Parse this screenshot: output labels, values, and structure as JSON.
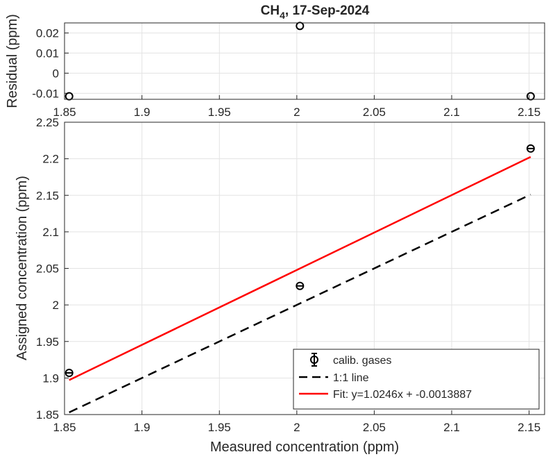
{
  "chart_data": [
    {
      "type": "scatter",
      "title_main": "CH",
      "title_sub": "4",
      "title_rest": ", 17-Sep-2024",
      "xlabel": "",
      "ylabel": "Residual (ppm)",
      "xlim": [
        1.85,
        2.16
      ],
      "ylim": [
        -0.013,
        0.025
      ],
      "xticks": [
        1.85,
        1.9,
        1.95,
        2,
        2.05,
        2.1,
        2.15
      ],
      "xtick_labels": [
        "1.85",
        "1.9",
        "1.95",
        "2",
        "2.05",
        "2.1",
        "2.15"
      ],
      "yticks": [
        0.02,
        0.01,
        0,
        -0.01
      ],
      "ytick_labels": [
        "0.02",
        "0.01",
        "0",
        "-0.01"
      ],
      "grid": true,
      "series": [
        {
          "x": [
            1.853,
            2.002,
            2.151
          ],
          "y": [
            -0.0115,
            0.0235,
            -0.0115
          ],
          "marker": "circle",
          "color": "#000000"
        }
      ]
    },
    {
      "type": "scatter",
      "xlabel": "Measured concentration (ppm)",
      "ylabel": "Assigned concentration (ppm)",
      "xlim": [
        1.85,
        2.16
      ],
      "ylim": [
        1.85,
        2.25
      ],
      "xticks": [
        1.85,
        1.9,
        1.95,
        2,
        2.05,
        2.1,
        2.15
      ],
      "xtick_labels": [
        "1.85",
        "1.9",
        "1.95",
        "2",
        "2.05",
        "2.1",
        "2.15"
      ],
      "yticks": [
        1.85,
        1.9,
        1.95,
        2,
        2.05,
        2.1,
        2.15,
        2.2,
        2.25
      ],
      "ytick_labels": [
        "1.85",
        "1.9",
        "1.95",
        "2",
        "2.05",
        "2.1",
        "2.15",
        "2.2",
        "2.25"
      ],
      "grid": true,
      "legend_position": "bottom-right",
      "series": [
        {
          "name": "calib. gases",
          "kind": "errorbar-points",
          "x": [
            1.853,
            2.002,
            2.151
          ],
          "y": [
            1.907,
            2.026,
            2.214
          ],
          "color": "#000000"
        },
        {
          "name": "1:1 line",
          "kind": "dashed-line",
          "x": [
            1.853,
            2.151
          ],
          "y": [
            1.853,
            2.151
          ],
          "color": "#000000"
        },
        {
          "name": "Fit: y=1.0246x + -0.0013887",
          "kind": "line",
          "slope": 1.0246,
          "intercept": -0.0013887,
          "x": [
            1.853,
            2.151
          ],
          "color": "#ff0000"
        }
      ]
    }
  ]
}
